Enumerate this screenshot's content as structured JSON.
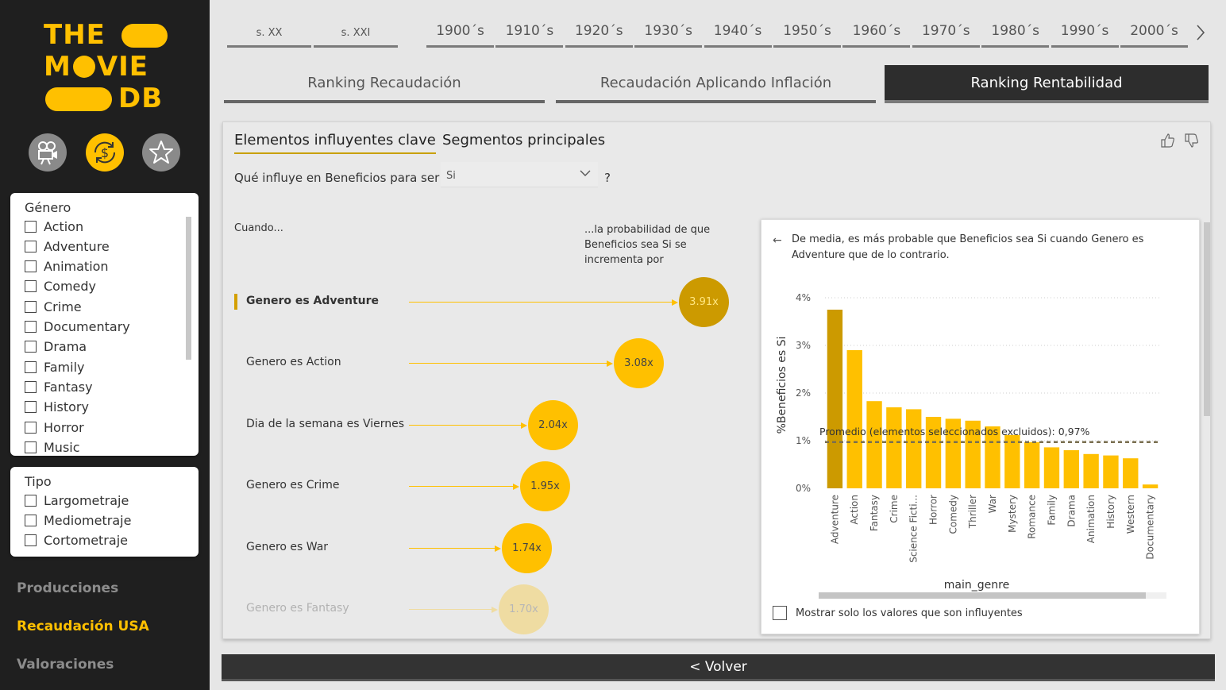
{
  "logo": {
    "line1": "THE",
    "line2a": "M",
    "line2b": "VIE",
    "line3": "DB"
  },
  "nav_icons": [
    "movie-camera-icon",
    "dollar-refresh-icon",
    "star-icon"
  ],
  "genre_slicer": {
    "title": "Género",
    "items": [
      "Action",
      "Adventure",
      "Animation",
      "Comedy",
      "Crime",
      "Documentary",
      "Drama",
      "Family",
      "Fantasy",
      "History",
      "Horror",
      "Music"
    ]
  },
  "type_slicer": {
    "title": "Tipo",
    "items": [
      "Largometraje",
      "Mediometraje",
      "Cortometraje"
    ]
  },
  "side_links": [
    "Producciones",
    "Recaudación USA",
    "Valoraciones"
  ],
  "century_tabs": [
    "s. XX",
    "s. XXI"
  ],
  "decade_tabs": [
    "1900´s",
    "1910´s",
    "1920´s",
    "1930´s",
    "1940´s",
    "1950´s",
    "1960´s",
    "1970´s",
    "1980´s",
    "1990´s",
    "2000´s"
  ],
  "page_tabs": [
    "Ranking Recaudación",
    "Recaudación Aplicando Inflación",
    "Ranking Rentabilidad"
  ],
  "active_page_tab": "Ranking Rentabilidad",
  "visual": {
    "tab1": "Elementos influyentes clave",
    "tab2": "Segmentos principales",
    "question": "Qué influye en Beneficios para ser",
    "selected_value": "Si",
    "question_mark": "?",
    "when_label": "Cuando...",
    "prob_label": "...la probabilidad de que Beneficios sea Si se incrementa por",
    "influencers": [
      {
        "label": "Genero es Adventure",
        "value": "3.91x",
        "factor": 3.91
      },
      {
        "label": "Genero es Action",
        "value": "3.08x",
        "factor": 3.08
      },
      {
        "label": "Dia de la semana es Viernes",
        "value": "2.04x",
        "factor": 2.04
      },
      {
        "label": "Genero es Crime",
        "value": "1.95x",
        "factor": 1.95
      },
      {
        "label": "Genero es War",
        "value": "1.74x",
        "factor": 1.74
      },
      {
        "label": "Genero es Fantasy",
        "value": "1.70x",
        "factor": 1.7
      }
    ],
    "detail_text": "De media, es más probable que Beneficios sea Si cuando Genero es Adventure que de lo contrario.",
    "show_only_label": "Mostrar solo los valores que son influyentes"
  },
  "chart_data": {
    "type": "bar",
    "xlabel": "main_genre",
    "ylabel": "%Beneficios es Si",
    "ylim": [
      0,
      4
    ],
    "yticks": [
      "0%",
      "1%",
      "2%",
      "3%",
      "4%"
    ],
    "grid": true,
    "categories": [
      "Adventure",
      "Action",
      "Fantasy",
      "Crime",
      "Science Ficti...",
      "Horror",
      "Comedy",
      "Thriller",
      "War",
      "Mystery",
      "Romance",
      "Family",
      "Drama",
      "Animation",
      "History",
      "Western",
      "Documentary"
    ],
    "values": [
      3.75,
      2.9,
      1.83,
      1.7,
      1.66,
      1.5,
      1.46,
      1.42,
      1.3,
      1.12,
      0.97,
      0.86,
      0.8,
      0.72,
      0.69,
      0.63,
      0.08
    ],
    "highlight_index": 0,
    "highlight_color": "#cc9a00",
    "bar_color": "#ffc000",
    "average": {
      "label": "Promedio (elementos seleccionados excluidos): 0,97%",
      "value": 0.97
    }
  },
  "volver_label": "< Volver"
}
